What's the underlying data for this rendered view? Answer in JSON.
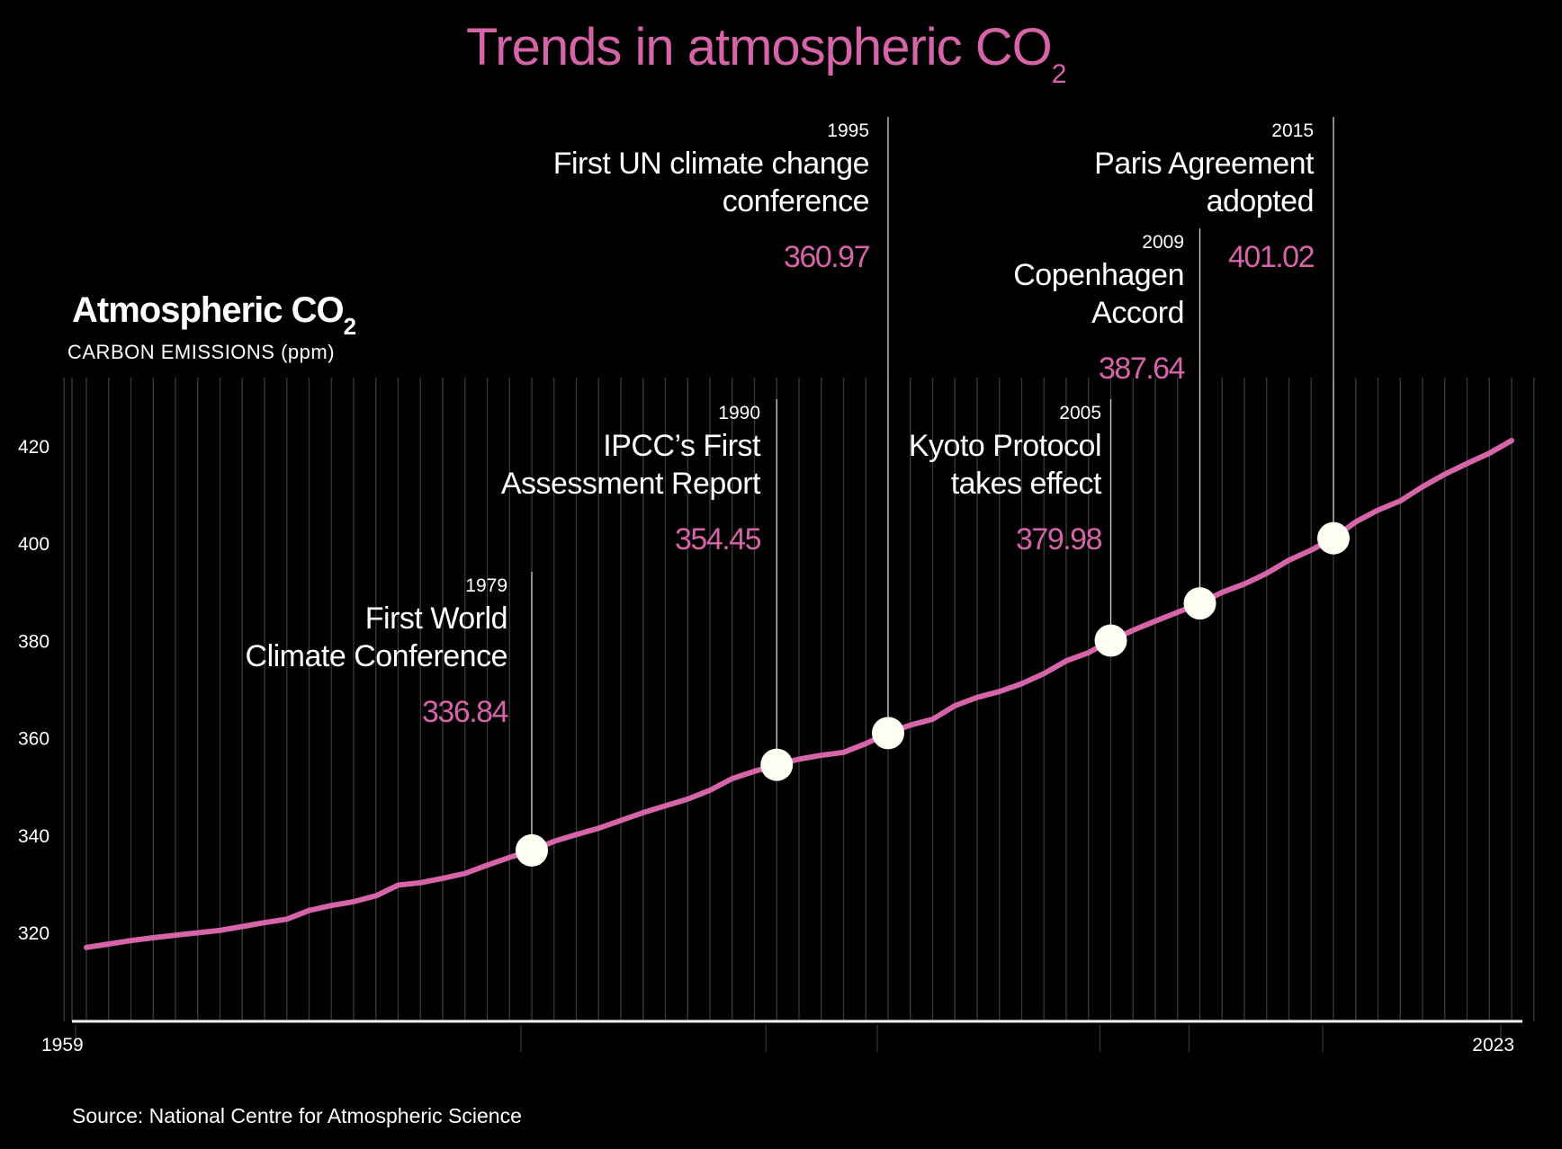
{
  "colors": {
    "background": "#000000",
    "accent": "#d664a8",
    "text": "#ffffff",
    "marker": "#fffff4",
    "grid": "#3a3a3a"
  },
  "title": {
    "main": "Trends in atmospheric CO",
    "sub": "2"
  },
  "panel": {
    "title": "Atmospheric CO",
    "title_sub": "2",
    "subtitle": "CARBON EMISSIONS (ppm)"
  },
  "source": "Source: National Centre for Atmospheric Science",
  "chart_data": {
    "type": "line",
    "title": "Trends in atmospheric CO2",
    "ylabel": "CARBON EMISSIONS (ppm)",
    "xlabel": "",
    "x_range": [
      1959,
      2023
    ],
    "ylim": [
      302,
      433
    ],
    "yticks": [
      320,
      340,
      360,
      380,
      400,
      420
    ],
    "xtick_labels": [
      "1959",
      "2023"
    ],
    "series": [
      {
        "name": "Atmospheric CO2",
        "x": [
          1959,
          1960,
          1961,
          1962,
          1963,
          1964,
          1965,
          1966,
          1967,
          1968,
          1969,
          1970,
          1971,
          1972,
          1973,
          1974,
          1975,
          1976,
          1977,
          1978,
          1979,
          1980,
          1981,
          1982,
          1983,
          1984,
          1985,
          1986,
          1987,
          1988,
          1989,
          1990,
          1991,
          1992,
          1993,
          1994,
          1995,
          1996,
          1997,
          1998,
          1999,
          2000,
          2001,
          2002,
          2003,
          2004,
          2005,
          2006,
          2007,
          2008,
          2009,
          2010,
          2011,
          2012,
          2013,
          2014,
          2015,
          2016,
          2017,
          2018,
          2019,
          2020,
          2021,
          2022,
          2023
        ],
        "values": [
          316.9,
          317.6,
          318.3,
          318.9,
          319.4,
          319.9,
          320.4,
          321.2,
          322.0,
          322.7,
          324.5,
          325.5,
          326.3,
          327.5,
          329.7,
          330.2,
          331.1,
          332.1,
          333.8,
          335.4,
          336.84,
          338.7,
          340.1,
          341.4,
          343.0,
          344.6,
          346.0,
          347.4,
          349.2,
          351.6,
          353.1,
          354.45,
          355.6,
          356.4,
          357.0,
          358.8,
          360.97,
          362.6,
          363.8,
          366.6,
          368.3,
          369.5,
          371.1,
          373.2,
          375.8,
          377.5,
          379.98,
          382.1,
          384.0,
          385.8,
          387.64,
          389.9,
          391.6,
          393.8,
          396.5,
          398.6,
          401.02,
          404.4,
          406.8,
          408.7,
          411.6,
          414.2,
          416.4,
          418.5,
          421.1
        ]
      }
    ],
    "annotations": [
      {
        "year": "1979",
        "label": [
          "First World",
          "Climate Conference"
        ],
        "value": "336.84",
        "x": 1979,
        "y": 336.84
      },
      {
        "year": "1990",
        "label": [
          "IPCC’s First",
          "Assessment Report"
        ],
        "value": "354.45",
        "x": 1990,
        "y": 354.45
      },
      {
        "year": "1995",
        "label": [
          "First UN climate change",
          "conference"
        ],
        "value": "360.97",
        "x": 1995,
        "y": 360.97
      },
      {
        "year": "2005",
        "label": [
          "Kyoto Protocol",
          "takes effect"
        ],
        "value": "379.98",
        "x": 2005,
        "y": 379.98
      },
      {
        "year": "2009",
        "label": [
          "Copenhagen",
          "Accord"
        ],
        "value": "387.64",
        "x": 2009,
        "y": 387.64
      },
      {
        "year": "2015",
        "label": [
          "Paris Agreement",
          "adopted"
        ],
        "value": "401.02",
        "x": 2015,
        "y": 401.02
      }
    ]
  }
}
